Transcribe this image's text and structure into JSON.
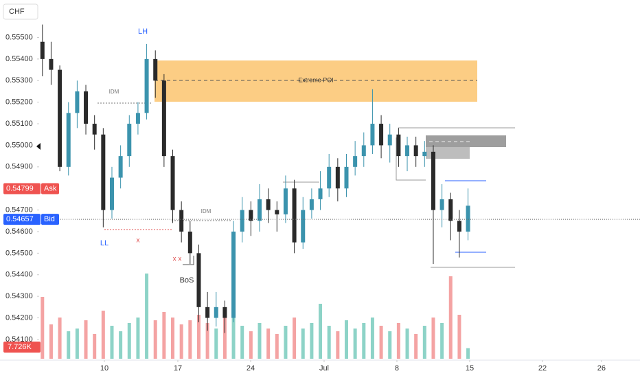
{
  "chart_data": {
    "type": "candlestick",
    "symbol": "CHF",
    "x": [
      0,
      1,
      2,
      3,
      4,
      5,
      6,
      7,
      8,
      9,
      10,
      11,
      12,
      13,
      14,
      15,
      16,
      17,
      18,
      19,
      20,
      21,
      22,
      23,
      24,
      25,
      26,
      27,
      28,
      29,
      30,
      31,
      32,
      33,
      34,
      35,
      36,
      37,
      38,
      39,
      40,
      41,
      42,
      43,
      44,
      45,
      46,
      47,
      48,
      49
    ],
    "open": [
      0.5548,
      0.554,
      0.5535,
      0.549,
      0.5515,
      0.5525,
      0.551,
      0.5505,
      0.547,
      0.5485,
      0.5495,
      0.551,
      0.5515,
      0.554,
      0.553,
      0.5495,
      0.547,
      0.546,
      0.545,
      0.5425,
      0.542,
      0.5425,
      0.542,
      0.546,
      0.547,
      0.5465,
      0.5475,
      0.547,
      0.5468,
      0.548,
      0.5455,
      0.547,
      0.5475,
      0.548,
      0.549,
      0.548,
      0.549,
      0.5495,
      0.55,
      0.551,
      0.55,
      0.5505,
      0.5495,
      0.55,
      0.5495,
      0.5497,
      0.547,
      0.5475,
      0.5465,
      0.546
    ],
    "high": [
      0.5556,
      0.5548,
      0.5537,
      0.552,
      0.553,
      0.5528,
      0.5514,
      0.5508,
      0.549,
      0.55,
      0.5514,
      0.552,
      0.5547,
      0.5544,
      0.5533,
      0.5498,
      0.5474,
      0.5465,
      0.5454,
      0.5432,
      0.5432,
      0.5428,
      0.5465,
      0.5476,
      0.5474,
      0.5482,
      0.548,
      0.5474,
      0.5486,
      0.5484,
      0.5476,
      0.548,
      0.5488,
      0.5496,
      0.5494,
      0.5496,
      0.5502,
      0.5506,
      0.5526,
      0.5514,
      0.551,
      0.5508,
      0.5504,
      0.5504,
      0.5502,
      0.55,
      0.5482,
      0.5478,
      0.547,
      0.548
    ],
    "low": [
      0.5532,
      0.5528,
      0.5488,
      0.5486,
      0.5508,
      0.5505,
      0.5498,
      0.5462,
      0.5466,
      0.548,
      0.549,
      0.5505,
      0.5512,
      0.5522,
      0.549,
      0.5464,
      0.5455,
      0.5445,
      0.5418,
      0.5414,
      0.5416,
      0.5413,
      0.5418,
      0.5455,
      0.5458,
      0.546,
      0.5464,
      0.546,
      0.5464,
      0.545,
      0.5452,
      0.5466,
      0.547,
      0.5476,
      0.5474,
      0.5476,
      0.5486,
      0.549,
      0.5496,
      0.5494,
      0.5492,
      0.549,
      0.5488,
      0.549,
      0.549,
      0.5445,
      0.5462,
      0.5456,
      0.5448,
      0.5456
    ],
    "close": [
      0.554,
      0.5535,
      0.549,
      0.5515,
      0.5525,
      0.551,
      0.5505,
      0.547,
      0.5485,
      0.5495,
      0.551,
      0.5515,
      0.554,
      0.553,
      0.5495,
      0.547,
      0.546,
      0.545,
      0.5425,
      0.542,
      0.5425,
      0.542,
      0.546,
      0.547,
      0.5465,
      0.5475,
      0.547,
      0.5468,
      0.548,
      0.5455,
      0.547,
      0.5475,
      0.548,
      0.549,
      0.548,
      0.549,
      0.5495,
      0.55,
      0.551,
      0.55,
      0.5505,
      0.5495,
      0.55,
      0.5495,
      0.5497,
      0.547,
      0.5475,
      0.5465,
      0.546,
      0.5472
    ],
    "up_color": "#3b93ad",
    "down_color": "#2a2a2a",
    "volume": {
      "values": [
        45000,
        25000,
        30000,
        20000,
        22000,
        28000,
        18000,
        35000,
        24000,
        20000,
        26000,
        30000,
        62000,
        28000,
        34000,
        30000,
        25000,
        28000,
        32000,
        26000,
        22000,
        30000,
        35000,
        24000,
        20000,
        26000,
        22000,
        18000,
        24000,
        30000,
        22000,
        26000,
        40000,
        24000,
        20000,
        28000,
        22000,
        26000,
        30000,
        24000,
        20000,
        26000,
        22000,
        18000,
        24000,
        30000,
        26000,
        60000,
        32000,
        7726
      ],
      "value_labels": [
        null,
        null,
        null,
        null,
        null,
        null,
        null,
        null,
        null,
        null,
        null,
        null,
        null,
        null,
        null,
        null,
        null,
        null,
        null,
        null,
        null,
        null,
        null,
        null,
        null,
        null,
        null,
        null,
        null,
        null,
        null,
        null,
        null,
        null,
        null,
        null,
        null,
        null,
        null,
        null,
        null,
        null,
        null,
        null,
        null,
        null,
        null,
        null,
        null,
        "7.726K"
      ],
      "lim": [
        0,
        70000
      ],
      "up_color": "#8dd3c7",
      "down_color": "#f4a3a3"
    },
    "xlim": [
      -0.3,
      68.8
    ],
    "xticks": [
      {
        "value": 7.13,
        "label": "10"
      },
      {
        "value": 15.59,
        "label": "17"
      },
      {
        "value": 23.97,
        "label": "24"
      },
      {
        "value": 32.43,
        "label": "Jul"
      },
      {
        "value": 40.81,
        "label": "8"
      },
      {
        "value": 49.19,
        "label": "15"
      },
      {
        "value": 57.57,
        "label": "22"
      },
      {
        "value": 64.36,
        "label": "26"
      }
    ],
    "ylim": [
      0.54001,
      0.55578
    ],
    "yticks": [
      {
        "value": 0.541,
        "label": "0.54100"
      },
      {
        "value": 0.542,
        "label": "0.54200"
      },
      {
        "value": 0.543,
        "label": "0.54300"
      },
      {
        "value": 0.544,
        "label": "0.54400"
      },
      {
        "value": 0.545,
        "label": "0.54500"
      },
      {
        "value": 0.546,
        "label": "0.54600"
      },
      {
        "value": 0.547,
        "label": "0.54700"
      },
      {
        "value": 0.549,
        "label": "0.54900"
      },
      {
        "value": 0.55,
        "label": "0.55000"
      },
      {
        "value": 0.551,
        "label": "0.55100"
      },
      {
        "value": 0.552,
        "label": "0.55200"
      },
      {
        "value": 0.553,
        "label": "0.55300"
      },
      {
        "value": 0.554,
        "label": "0.55400"
      },
      {
        "value": 0.555,
        "label": "0.55500"
      }
    ],
    "ask": {
      "value": 0.54799,
      "label": "Ask"
    },
    "bid": {
      "value": 0.54657,
      "label": "Bid"
    },
    "annotations": {
      "poi": "Extreme POI",
      "idm1": "IDM",
      "idm2": "IDM",
      "lh": "LH",
      "ll": "LL",
      "x1": "x",
      "x2": "x x",
      "bos": "BoS"
    }
  }
}
